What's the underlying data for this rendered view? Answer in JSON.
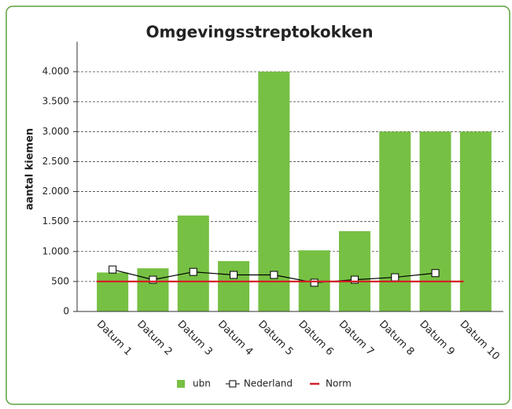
{
  "chart_data": {
    "type": "bar",
    "title": "Omgevingsstreptokokken",
    "y_label": "aantal kiemen",
    "categories": [
      "Datum 1",
      "Datum 2",
      "Datum 3",
      "Datum 4",
      "Datum 5",
      "Datum 6",
      "Datum 7",
      "Datum 8",
      "Datum 9",
      "Datum 10"
    ],
    "series": [
      {
        "name": "ubn",
        "type": "bar",
        "color": "#76c043",
        "values": [
          650,
          720,
          1600,
          840,
          4000,
          1020,
          1340,
          3000,
          3000,
          3000
        ]
      },
      {
        "name": "Nederland",
        "type": "line",
        "color": "#000000",
        "values": [
          700,
          530,
          660,
          610,
          610,
          480,
          530,
          570,
          640,
          null
        ]
      },
      {
        "name": "Norm",
        "type": "line",
        "color": "#d32027",
        "values": [
          500,
          500,
          500,
          500,
          500,
          500,
          500,
          500,
          500,
          null
        ]
      }
    ],
    "ylim": [
      0,
      4500
    ],
    "yticks": [
      0,
      500,
      {
        "value": 1000,
        "label": "1.000"
      },
      {
        "value": 1500,
        "label": "1.500"
      },
      {
        "value": 2000,
        "label": "2.000"
      },
      {
        "value": 2500,
        "label": "2.500"
      },
      {
        "value": 3000,
        "label": "3.000"
      },
      {
        "value": 3500,
        "label": "3.500"
      },
      {
        "value": 4000,
        "label": "4.000"
      }
    ],
    "grid": true,
    "legend": "bottom"
  }
}
